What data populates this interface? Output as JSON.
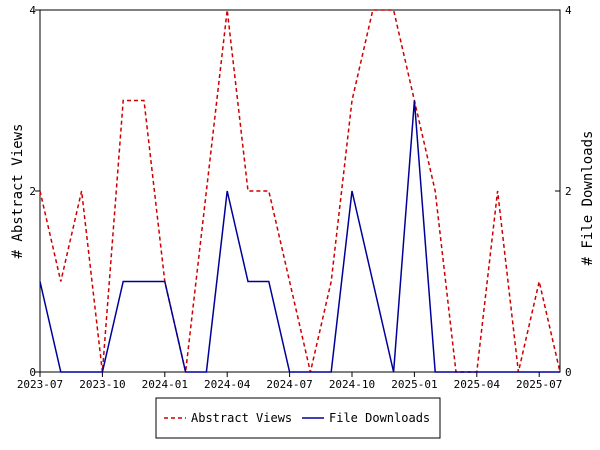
{
  "chart_data": {
    "type": "line",
    "title": "",
    "x": [
      "2023-07",
      "2023-08",
      "2023-09",
      "2023-10",
      "2023-11",
      "2023-12",
      "2024-01",
      "2024-02",
      "2024-03",
      "2024-04",
      "2024-05",
      "2024-06",
      "2024-07",
      "2024-08",
      "2024-09",
      "2024-10",
      "2024-11",
      "2024-12",
      "2025-01",
      "2025-02",
      "2025-03",
      "2025-04",
      "2025-05",
      "2025-06",
      "2025-07",
      "2025-08"
    ],
    "x_tick_labels": [
      "2023-07",
      "2023-10",
      "2024-01",
      "2024-04",
      "2024-07",
      "2024-10",
      "2025-01",
      "2025-04",
      "2025-07"
    ],
    "series": [
      {
        "name": "Abstract Views",
        "color": "#cc0000",
        "dash": "dashed",
        "axis": "left",
        "values": [
          2,
          1,
          2,
          0,
          3,
          3,
          1,
          0,
          2,
          4,
          2,
          2,
          1,
          0,
          1,
          3,
          4,
          4,
          3,
          2,
          0,
          0,
          2,
          0,
          1,
          0
        ]
      },
      {
        "name": "File Downloads",
        "color": "#000099",
        "dash": "solid",
        "axis": "right",
        "values": [
          1,
          0,
          0,
          0,
          1,
          1,
          1,
          0,
          0,
          2,
          1,
          1,
          0,
          0,
          0,
          2,
          1,
          0,
          3,
          0,
          0,
          0,
          0,
          0,
          0,
          0
        ]
      }
    ],
    "ylabel_left": "# Abstract Views",
    "ylabel_right": "# File Downloads",
    "ylim": [
      0,
      4
    ],
    "y_tick_labels_left": [
      "0",
      "2",
      "4"
    ],
    "y_tick_labels_right": [
      "0",
      "2",
      "4"
    ],
    "grid": false,
    "legend_position": "bottom"
  }
}
